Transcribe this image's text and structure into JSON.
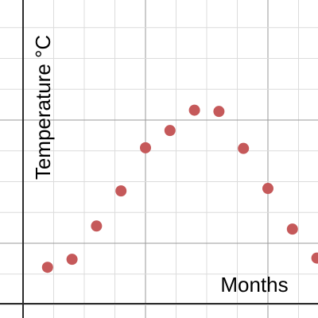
{
  "chart_data": {
    "type": "scatter",
    "title": "",
    "xlabel": "Months",
    "ylabel": "Temperature °C",
    "point_color": "#c5595a",
    "grid": true,
    "series": [
      {
        "x": [
          1,
          2,
          3,
          4,
          5,
          6,
          7,
          8,
          9,
          10,
          11,
          12
        ],
        "y": [
          -3.9,
          -2.6,
          2.8,
          8.5,
          15.5,
          18.3,
          21.6,
          21.4,
          15.4,
          8.9,
          2.3,
          -2.4
        ]
      }
    ],
    "xlim": [
      0,
      12.4
    ],
    "ylim": [
      -6,
      24
    ]
  }
}
